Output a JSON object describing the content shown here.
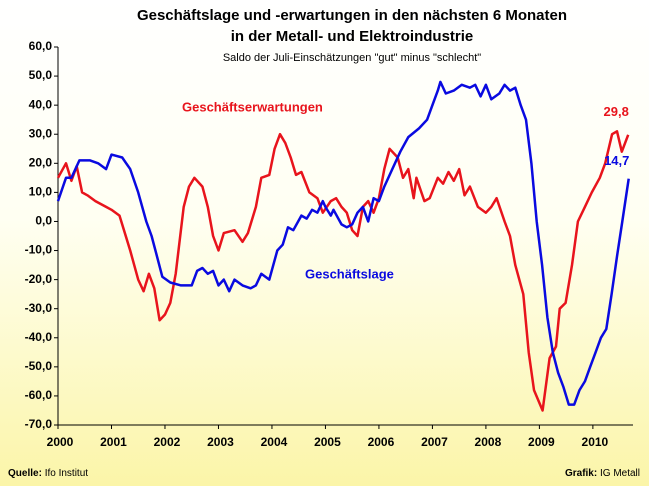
{
  "chart_data": {
    "type": "line",
    "title": [
      "Geschäftslage und -erwartungen in den nächsten 6 Monaten",
      "in der Metall- und Elektroindustrie"
    ],
    "subtitle": "Saldo der Juli-Einschätzungen \"gut\" minus \"schlecht\"",
    "source": {
      "label": "Quelle:",
      "text": "Ifo Institut"
    },
    "credit": {
      "label": "Grafik:",
      "text": "IG Metall"
    },
    "xlim": [
      2000,
      2010.75
    ],
    "xticks": [
      2000,
      2001,
      2002,
      2003,
      2004,
      2005,
      2006,
      2007,
      2008,
      2009,
      2010
    ],
    "ylim": [
      -70,
      60
    ],
    "yticks": [
      {
        "value": -70,
        "label": "-70,0"
      },
      {
        "value": -60,
        "label": "-60,0"
      },
      {
        "value": -50,
        "label": "-50,0"
      },
      {
        "value": -40,
        "label": "-40,0"
      },
      {
        "value": -30,
        "label": "-30,0"
      },
      {
        "value": -20,
        "label": "-20,0"
      },
      {
        "value": -10,
        "label": "-10,0"
      },
      {
        "value": 0,
        "label": "0,0"
      },
      {
        "value": 10,
        "label": "10,0"
      },
      {
        "value": 20,
        "label": "20,0"
      },
      {
        "value": 30,
        "label": "30,0"
      },
      {
        "value": 40,
        "label": "40,0"
      },
      {
        "value": 50,
        "label": "50,0"
      },
      {
        "value": 60,
        "label": "60,0"
      }
    ],
    "grid": false,
    "series": [
      {
        "name": "Geschäftserwartungen",
        "color": "#e8141c",
        "x": [
          2000.0,
          2000.15,
          2000.25,
          2000.35,
          2000.45,
          2000.55,
          2000.7,
          2000.9,
          2001.0,
          2001.15,
          2001.35,
          2001.5,
          2001.6,
          2001.7,
          2001.8,
          2001.9,
          2002.0,
          2002.1,
          2002.2,
          2002.35,
          2002.45,
          2002.55,
          2002.7,
          2002.8,
          2002.9,
          2003.0,
          2003.1,
          2003.3,
          2003.45,
          2003.55,
          2003.7,
          2003.8,
          2003.95,
          2004.05,
          2004.15,
          2004.25,
          2004.35,
          2004.45,
          2004.55,
          2004.7,
          2004.85,
          2004.95,
          2005.1,
          2005.2,
          2005.3,
          2005.4,
          2005.5,
          2005.6,
          2005.7,
          2005.8,
          2005.9,
          2006.0,
          2006.1,
          2006.2,
          2006.35,
          2006.45,
          2006.55,
          2006.65,
          2006.7,
          2006.85,
          2006.95,
          2007.1,
          2007.2,
          2007.3,
          2007.4,
          2007.5,
          2007.6,
          2007.7,
          2007.85,
          2008.0,
          2008.1,
          2008.2,
          2008.35,
          2008.45,
          2008.55,
          2008.7,
          2008.8,
          2008.9,
          2009.06,
          2009.19,
          2009.31,
          2009.38,
          2009.49,
          2009.61,
          2009.72,
          2009.85,
          2009.98,
          2010.13,
          2010.23,
          2010.36,
          2010.45,
          2010.54,
          2010.66
        ],
        "values": [
          15,
          20,
          14,
          19,
          10,
          9,
          7,
          5,
          4,
          2,
          -10,
          -20,
          -24,
          -18,
          -23,
          -34,
          -32,
          -28,
          -18,
          5,
          12,
          15,
          12,
          5,
          -5,
          -10,
          -4,
          -3,
          -7,
          -4,
          5,
          15,
          16,
          25,
          30,
          27,
          22,
          16,
          17,
          10,
          8,
          3,
          7,
          8,
          5,
          3,
          -3,
          -5,
          5,
          7,
          3,
          8,
          18,
          25,
          22,
          15,
          18,
          8,
          15,
          7,
          8,
          15,
          13,
          17,
          14,
          18,
          9,
          12,
          5,
          3,
          5,
          8,
          0,
          -5,
          -15,
          -25,
          -45,
          -58,
          -65,
          -47,
          -43,
          -30,
          -28,
          -15,
          0,
          5,
          10,
          15,
          20,
          30,
          31,
          24,
          29.8
        ],
        "value_labels": [
          null,
          null,
          null,
          null,
          null,
          null,
          null,
          null,
          null,
          null,
          null,
          null,
          null,
          null,
          null,
          null,
          null,
          null,
          null,
          null,
          null,
          null,
          null,
          null,
          null,
          null,
          null,
          null,
          null,
          null,
          null,
          null,
          null,
          null,
          null,
          null,
          null,
          null,
          null,
          null,
          null,
          null,
          null,
          null,
          null,
          null,
          null,
          null,
          null,
          null,
          null,
          null,
          null,
          null,
          null,
          null,
          null,
          null,
          null,
          null,
          null,
          null,
          null,
          null,
          null,
          null,
          null,
          null,
          null,
          null,
          null,
          null,
          null,
          null,
          null,
          null,
          null,
          null,
          null,
          null,
          null,
          null,
          null,
          null,
          null,
          null,
          null,
          null,
          null,
          null,
          null,
          null,
          "29,8"
        ]
      },
      {
        "name": "Geschäftslage",
        "color": "#0a0ae0",
        "x": [
          2000.0,
          2000.15,
          2000.25,
          2000.4,
          2000.6,
          2000.75,
          2000.9,
          2001.0,
          2001.2,
          2001.35,
          2001.5,
          2001.65,
          2001.75,
          2001.85,
          2001.95,
          2002.1,
          2002.3,
          2002.5,
          2002.6,
          2002.7,
          2002.8,
          2002.9,
          2003.0,
          2003.1,
          2003.2,
          2003.3,
          2003.45,
          2003.6,
          2003.7,
          2003.8,
          2003.95,
          2004.1,
          2004.2,
          2004.3,
          2004.4,
          2004.55,
          2004.65,
          2004.75,
          2004.85,
          2004.95,
          2005.0,
          2005.1,
          2005.15,
          2005.3,
          2005.4,
          2005.5,
          2005.6,
          2005.7,
          2005.8,
          2005.9,
          2006.0,
          2006.1,
          2006.25,
          2006.4,
          2006.55,
          2006.75,
          2006.9,
          2007.0,
          2007.1,
          2007.15,
          2007.25,
          2007.4,
          2007.55,
          2007.7,
          2007.8,
          2007.9,
          2008.0,
          2008.1,
          2008.25,
          2008.35,
          2008.45,
          2008.55,
          2008.65,
          2008.75,
          2008.85,
          2008.95,
          2009.05,
          2009.15,
          2009.25,
          2009.35,
          2009.45,
          2009.55,
          2009.65,
          2009.75,
          2009.85,
          2009.95,
          2010.05,
          2010.15,
          2010.25,
          2010.35,
          2010.45,
          2010.55,
          2010.67
        ],
        "values": [
          7,
          15,
          15,
          21,
          21,
          20,
          18,
          23,
          22,
          18,
          10,
          0,
          -5,
          -12,
          -19,
          -21,
          -22,
          -22,
          -17,
          -16,
          -18,
          -17,
          -22,
          -20,
          -24,
          -20,
          -22,
          -23,
          -22,
          -18,
          -20,
          -10,
          -8,
          -2,
          -3,
          2,
          1,
          4,
          3,
          7,
          5,
          2,
          4,
          -1,
          -2,
          -1,
          3,
          5,
          0,
          8,
          7,
          12,
          18,
          24,
          29,
          32,
          35,
          40,
          45,
          48,
          44,
          45,
          47,
          46,
          47,
          43,
          47,
          42,
          44,
          47,
          45,
          46,
          40,
          35,
          20,
          0,
          -15,
          -33,
          -45,
          -52,
          -57,
          -63,
          -63,
          -58,
          -55,
          -50,
          -45,
          -40,
          -37,
          -25,
          -12,
          0,
          14.7
        ],
        "value_labels": [
          null,
          null,
          null,
          null,
          null,
          null,
          null,
          null,
          null,
          null,
          null,
          null,
          null,
          null,
          null,
          null,
          null,
          null,
          null,
          null,
          null,
          null,
          null,
          null,
          null,
          null,
          null,
          null,
          null,
          null,
          null,
          null,
          null,
          null,
          null,
          null,
          null,
          null,
          null,
          null,
          null,
          null,
          null,
          null,
          null,
          null,
          null,
          null,
          null,
          null,
          null,
          null,
          null,
          null,
          null,
          null,
          null,
          null,
          null,
          null,
          null,
          null,
          null,
          null,
          null,
          null,
          null,
          null,
          null,
          null,
          null,
          null,
          null,
          null,
          null,
          null,
          null,
          null,
          null,
          null,
          null,
          null,
          null,
          null,
          null,
          null,
          null,
          null,
          null,
          null,
          null,
          null,
          "14,7"
        ]
      }
    ]
  }
}
